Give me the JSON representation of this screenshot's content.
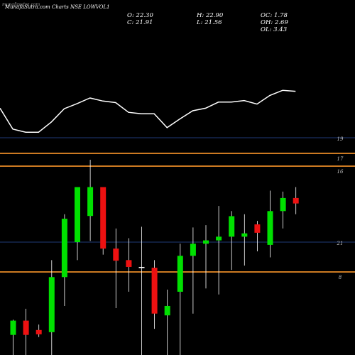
{
  "header": {
    "watermark": "munafasutra.com",
    "title": "MunafaSutra.com Charts NSE LOWVOL1",
    "o": "O: 22.30",
    "h": "H: 22.90",
    "oc": "OC: 1.78",
    "c": "C: 21.91",
    "l": "L: 21.56",
    "oh": "OH: 2.69",
    "ol": "OL: 3.43"
  },
  "colors": {
    "background": "#000000",
    "up": "#00e000",
    "down": "#ee1111",
    "wick": "#ffffff",
    "line": "#ffffff",
    "orange_level": "#cc7a22",
    "blue_level": "#203a78",
    "label": "#c0c0c0"
  },
  "chart_data": {
    "type": "candlestick",
    "y_labels": [
      {
        "text": "19",
        "value": 19
      },
      {
        "text": "17",
        "value": 17
      },
      {
        "text": "16",
        "value": 16
      },
      {
        "text": "21",
        "value": 21
      },
      {
        "text": "8",
        "value": 8
      }
    ],
    "levels": [
      {
        "color": "blue",
        "value": 19
      },
      {
        "color": "orange",
        "value": 17
      },
      {
        "color": "orange",
        "value": 16
      },
      {
        "color": "blue",
        "value": 21
      },
      {
        "color": "orange",
        "value": 8
      }
    ],
    "line_series": [
      0.55,
      0.14,
      0.08,
      0.08,
      0.28,
      0.54,
      0.64,
      0.75,
      0.69,
      0.66,
      0.47,
      0.44,
      0.44,
      0.17,
      0.34,
      0.5,
      0.55,
      0.67,
      0.67,
      0.7,
      0.63,
      0.8,
      0.9,
      0.88
    ],
    "candles": [
      {
        "o": 0.103,
        "h": 0.181,
        "l": 0.0,
        "c": 0.176
      },
      {
        "o": 0.176,
        "h": 0.237,
        "l": 0.0,
        "c": 0.103
      },
      {
        "o": 0.128,
        "h": 0.156,
        "l": 0.092,
        "c": 0.106
      },
      {
        "o": 0.117,
        "h": 0.486,
        "l": 0.0,
        "c": 0.399
      },
      {
        "o": 0.399,
        "h": 0.721,
        "l": 0.251,
        "c": 0.698
      },
      {
        "o": 0.578,
        "h": 0.86,
        "l": 0.486,
        "c": 0.86
      },
      {
        "o": 0.712,
        "h": 1.0,
        "l": 0.584,
        "c": 0.86
      },
      {
        "o": 0.86,
        "h": 0.86,
        "l": 0.514,
        "c": 0.545
      },
      {
        "o": 0.545,
        "h": 0.648,
        "l": 0.24,
        "c": 0.483
      },
      {
        "o": 0.486,
        "h": 0.598,
        "l": 0.324,
        "c": 0.451
      },
      {
        "o": 0.451,
        "h": 0.657,
        "l": 0.0,
        "c": 0.451
      },
      {
        "o": 0.447,
        "h": 0.486,
        "l": 0.134,
        "c": 0.212
      },
      {
        "o": 0.203,
        "h": 0.335,
        "l": 0.0,
        "c": 0.251
      },
      {
        "o": 0.324,
        "h": 0.57,
        "l": 0.0,
        "c": 0.508
      },
      {
        "o": 0.508,
        "h": 0.653,
        "l": 0.212,
        "c": 0.57
      },
      {
        "o": 0.57,
        "h": 0.665,
        "l": 0.341,
        "c": 0.587
      },
      {
        "o": 0.587,
        "h": 0.763,
        "l": 0.31,
        "c": 0.606
      },
      {
        "o": 0.606,
        "h": 0.737,
        "l": 0.436,
        "c": 0.711
      },
      {
        "o": 0.606,
        "h": 0.721,
        "l": 0.458,
        "c": 0.623
      },
      {
        "o": 0.669,
        "h": 0.687,
        "l": 0.531,
        "c": 0.626
      },
      {
        "o": 0.564,
        "h": 0.842,
        "l": 0.5,
        "c": 0.737
      },
      {
        "o": 0.737,
        "h": 0.837,
        "l": 0.648,
        "c": 0.804
      },
      {
        "o": 0.804,
        "h": 0.86,
        "l": 0.721,
        "c": 0.776
      }
    ]
  }
}
